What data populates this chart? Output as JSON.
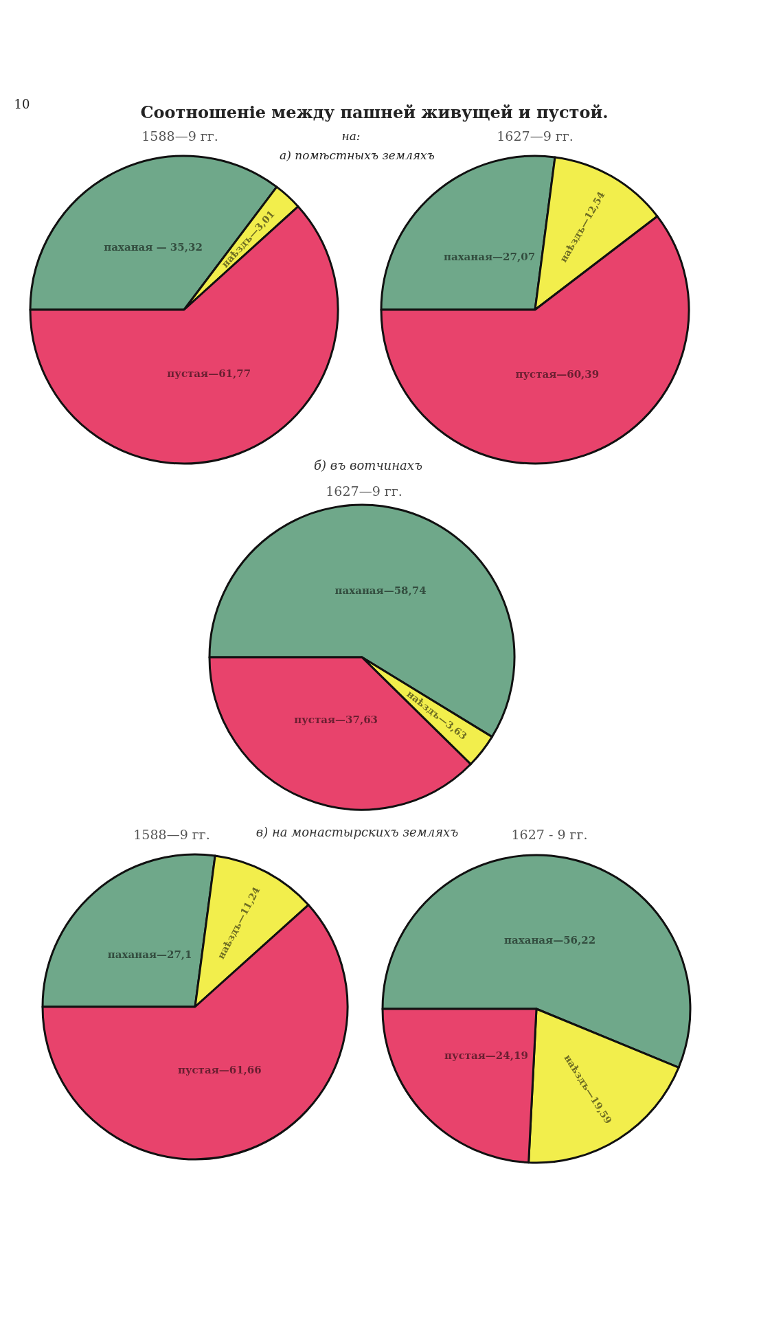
{
  "chart_data": [
    {
      "type": "pie",
      "title": "1588—9 гг.",
      "annotations": [
        "Соотношеніе между пашней живущей и пустой.",
        "на:",
        "а) помѣстныхъ земляхъ",
        "10"
      ],
      "categories": [
        "паханая",
        "наѣздъ",
        "пустая"
      ],
      "values": [
        35.32,
        3.01,
        61.77
      ],
      "value_labels": [
        " — 35,32",
        "—3,01",
        "—61,77"
      ],
      "colors": [
        "#6fa88a",
        "#f2ee4c",
        "#e8436c"
      ]
    },
    {
      "type": "pie",
      "title": "1627—9 гг.",
      "categories": [
        "паханая",
        "наѣздъ",
        "пустая"
      ],
      "values": [
        27.07,
        12.54,
        60.39
      ],
      "value_labels": [
        "—27,07",
        "—12,54",
        "—60,39"
      ],
      "colors": [
        "#6fa88a",
        "#f2ee4c",
        "#e8436c"
      ]
    },
    {
      "type": "pie",
      "title": "1627—9 гг.",
      "subtitle": "б) въ вотчинахъ",
      "categories": [
        "паханая",
        "наѣздъ",
        "пустая"
      ],
      "values": [
        58.74,
        3.63,
        37.63
      ],
      "value_labels": [
        "—58,74",
        "—3,63",
        "—37,63"
      ],
      "colors": [
        "#6fa88a",
        "#f2ee4c",
        "#e8436c"
      ]
    },
    {
      "type": "pie",
      "title": "1588—9 гг.",
      "subtitle": "в) на монастырскихъ земляхъ",
      "categories": [
        "паханая",
        "наѣздъ",
        "пустая"
      ],
      "values": [
        27.1,
        11.24,
        61.66
      ],
      "value_labels": [
        "—27,1",
        "—11,24",
        "—61,66"
      ],
      "colors": [
        "#6fa88a",
        "#f2ee4c",
        "#e8436c"
      ]
    },
    {
      "type": "pie",
      "title": "1627 - 9 гг.",
      "categories": [
        "паханая",
        "наѣздъ",
        "пустая"
      ],
      "values": [
        56.22,
        19.59,
        24.19
      ],
      "value_labels": [
        "—56,22",
        "—19,59",
        "—24,19"
      ],
      "colors": [
        "#6fa88a",
        "#f2ee4c",
        "#e8436c"
      ]
    }
  ]
}
